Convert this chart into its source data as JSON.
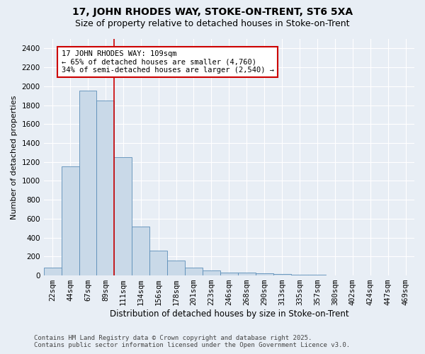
{
  "title1": "17, JOHN RHODES WAY, STOKE-ON-TRENT, ST6 5XA",
  "title2": "Size of property relative to detached houses in Stoke-on-Trent",
  "xlabel": "Distribution of detached houses by size in Stoke-on-Trent",
  "ylabel": "Number of detached properties",
  "categories": [
    "22sqm",
    "44sqm",
    "67sqm",
    "89sqm",
    "111sqm",
    "134sqm",
    "156sqm",
    "178sqm",
    "201sqm",
    "223sqm",
    "246sqm",
    "268sqm",
    "290sqm",
    "313sqm",
    "335sqm",
    "357sqm",
    "380sqm",
    "402sqm",
    "424sqm",
    "447sqm",
    "469sqm"
  ],
  "values": [
    80,
    1150,
    1950,
    1850,
    1250,
    520,
    260,
    160,
    80,
    50,
    30,
    30,
    25,
    15,
    10,
    5,
    3,
    2,
    1,
    1,
    0
  ],
  "bar_color": "#c9d9e8",
  "bar_edge_color": "#5b8db8",
  "background_color": "#e8eef5",
  "grid_color": "#ffffff",
  "annotation_line1": "17 JOHN RHODES WAY: 109sqm",
  "annotation_line2": "← 65% of detached houses are smaller (4,760)",
  "annotation_line3": "34% of semi-detached houses are larger (2,540) →",
  "annotation_box_color": "#ffffff",
  "annotation_box_edge_color": "#cc0000",
  "vline_color": "#cc0000",
  "vline_index": 4,
  "ylim": [
    0,
    2500
  ],
  "yticks": [
    0,
    200,
    400,
    600,
    800,
    1000,
    1200,
    1400,
    1600,
    1800,
    2000,
    2200,
    2400
  ],
  "footer1": "Contains HM Land Registry data © Crown copyright and database right 2025.",
  "footer2": "Contains public sector information licensed under the Open Government Licence v3.0.",
  "title1_fontsize": 10,
  "title2_fontsize": 9,
  "xlabel_fontsize": 8.5,
  "ylabel_fontsize": 8,
  "tick_fontsize": 7.5,
  "annotation_fontsize": 7.5,
  "footer_fontsize": 6.5
}
